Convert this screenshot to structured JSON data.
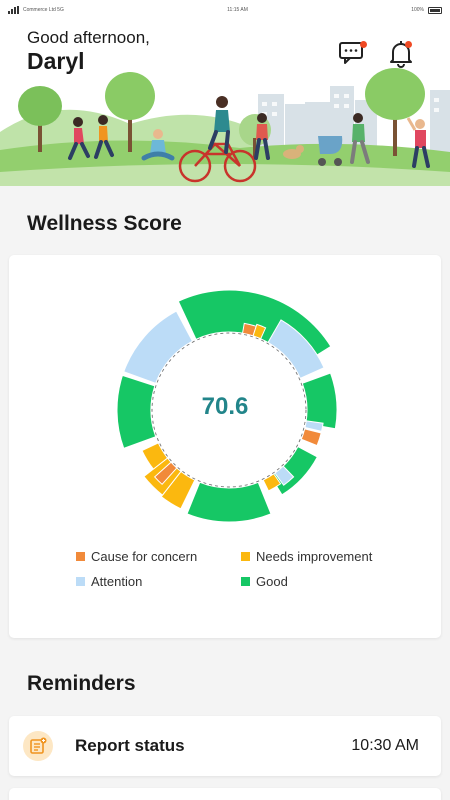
{
  "status_bar": {
    "carrier": "Commerce Ltd 5G",
    "time": "11:15 AM",
    "battery": "100%"
  },
  "header": {
    "greeting": "Good afternoon,",
    "user_name": "Daryl"
  },
  "icons": {
    "chat": "chat-bubble-icon",
    "notifications": "bell-icon",
    "reminder": "checklist-icon"
  },
  "wellness": {
    "title": "Wellness Score",
    "score": "70.6",
    "legend": [
      {
        "label": "Cause for concern",
        "color": "#f18a3a"
      },
      {
        "label": "Needs improvement",
        "color": "#fbb80f"
      },
      {
        "label": "Attention",
        "color": "#bcdcf7"
      },
      {
        "label": "Good",
        "color": "#16c765"
      }
    ]
  },
  "reminders": {
    "title": "Reminders",
    "items": [
      {
        "label": "Report status",
        "time": "10:30 AM"
      }
    ]
  }
}
